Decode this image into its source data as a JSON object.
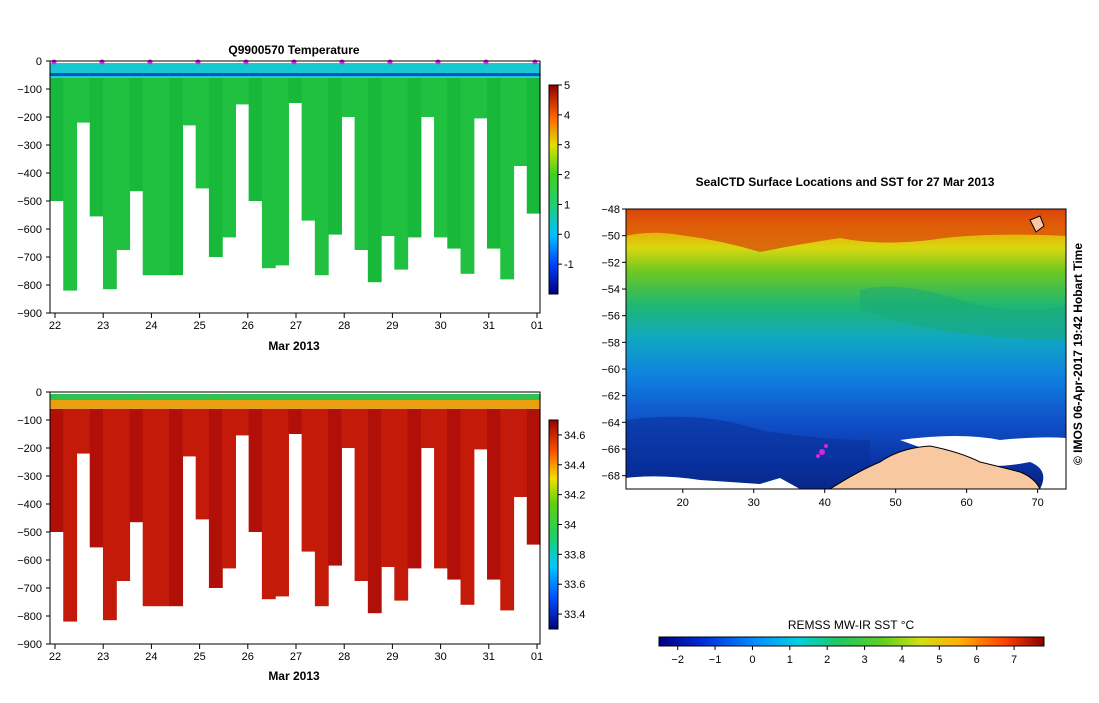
{
  "chart_data": [
    {
      "type": "heatmap",
      "title": "Q9900570  Temperature",
      "xlabel": "Mar 2013",
      "ylabel": "",
      "x_ticks": [
        "22",
        "23",
        "24",
        "25",
        "26",
        "27",
        "28",
        "29",
        "30",
        "31",
        "01"
      ],
      "y_ticks": [
        0,
        -100,
        -200,
        -300,
        -400,
        -500,
        -600,
        -700,
        -800,
        -900
      ],
      "ylim": [
        -900,
        0
      ],
      "colorbar": {
        "ticks": [
          5,
          4,
          3,
          2,
          1,
          0,
          -1
        ],
        "range": [
          -2,
          5
        ]
      },
      "profile_max_depths": [
        500,
        820,
        220,
        555,
        815,
        675,
        465,
        765,
        765,
        765,
        230,
        455,
        700,
        630,
        155,
        500,
        740,
        730,
        150,
        570,
        765,
        620,
        200,
        675,
        790,
        625,
        745,
        630,
        200,
        630,
        670,
        760,
        205,
        670,
        780,
        375,
        545
      ],
      "markers_at_surface": [
        "22.4",
        "23",
        "23.5",
        "24",
        "24.5",
        "25",
        "25.5",
        "26",
        "27",
        "28",
        "29",
        "29.5",
        "30",
        "31",
        "32"
      ],
      "series": [
        {
          "name": "",
          "values": []
        }
      ]
    },
    {
      "type": "heatmap",
      "title": "",
      "xlabel": "Mar 2013",
      "ylabel": "",
      "x_ticks": [
        "22",
        "23",
        "24",
        "25",
        "26",
        "27",
        "28",
        "29",
        "30",
        "31",
        "01"
      ],
      "y_ticks": [
        0,
        -100,
        -200,
        -300,
        -400,
        -500,
        -600,
        -700,
        -800,
        -900
      ],
      "ylim": [
        -900,
        0
      ],
      "colorbar": {
        "ticks": [
          "34.6",
          "34.4",
          "34.2",
          "34",
          "33.8",
          "33.6",
          "33.4"
        ],
        "range": [
          33.3,
          34.7
        ]
      }
    },
    {
      "type": "heatmap",
      "title": "SealCTD Surface Locations and SST for 27 Mar 2013",
      "xlabel": "",
      "ylabel": "",
      "x_ticks": [
        "20",
        "30",
        "40",
        "50",
        "60",
        "70"
      ],
      "xlim": [
        12,
        74
      ],
      "y_ticks": [
        "-48",
        "-50",
        "-52",
        "-54",
        "-56",
        "-58",
        "-60",
        "-62",
        "-64",
        "-66",
        "-68"
      ],
      "ylim": [
        -69,
        -48
      ],
      "colorbar": {
        "label": "REMSS MW-IR SST °C",
        "ticks": [
          "-2",
          "-1",
          "0",
          "1",
          "2",
          "3",
          "4",
          "5",
          "6",
          "7"
        ],
        "range": [
          -2.5,
          7.8
        ]
      }
    }
  ],
  "credit": "© IMOS 06-Apr-2017 19:42 Hobart Time",
  "colors": {
    "warm_red": "#c01010",
    "green": "#10b830",
    "cyan": "#10c8d8",
    "land": "#f8c8a0",
    "marker": "#e020e0"
  }
}
